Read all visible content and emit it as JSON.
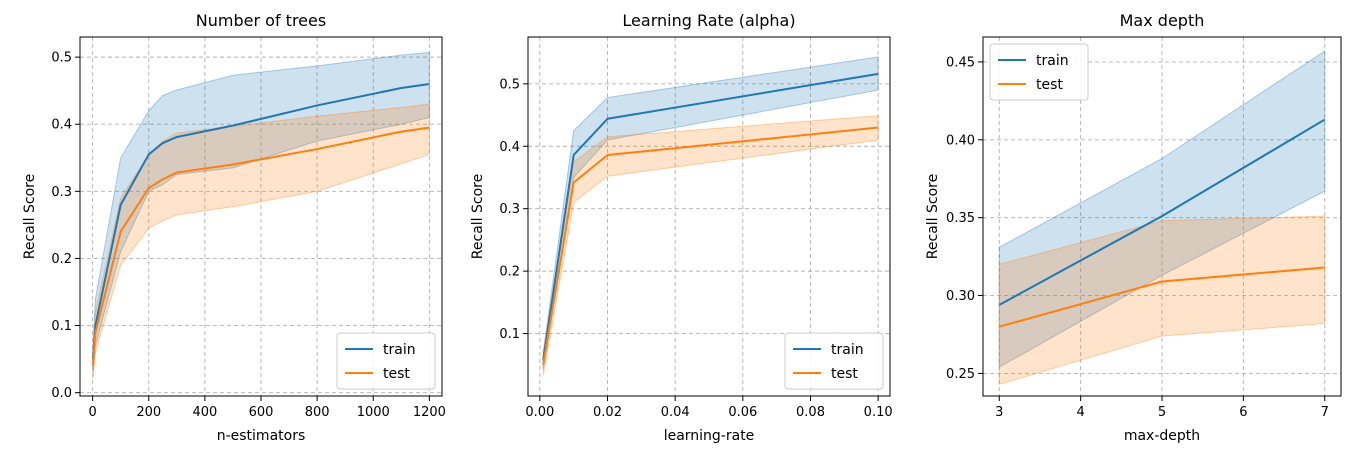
{
  "chart_data": [
    {
      "type": "line",
      "title": "Number of trees",
      "xlabel": "n-estimators",
      "ylabel": "Recall Score",
      "xlim": [
        -45,
        1245
      ],
      "ylim": [
        -0.005,
        0.53
      ],
      "xticks": [
        0,
        200,
        400,
        600,
        800,
        1000,
        1200
      ],
      "xtick_labels": [
        "0",
        "200",
        "400",
        "600",
        "800",
        "1000",
        "1200"
      ],
      "yticks": [
        0.0,
        0.1,
        0.2,
        0.3,
        0.4,
        0.5
      ],
      "ytick_labels": [
        "0.0",
        "0.1",
        "0.2",
        "0.3",
        "0.4",
        "0.5"
      ],
      "grid": true,
      "legend_position": "lower-right",
      "x": [
        1,
        10,
        100,
        200,
        250,
        300,
        500,
        800,
        1100,
        1200
      ],
      "series": [
        {
          "name": "train",
          "color": "#1f77b4",
          "values": [
            0.05,
            0.1,
            0.28,
            0.355,
            0.372,
            0.381,
            0.398,
            0.428,
            0.454,
            0.46
          ],
          "lower": [
            0.03,
            0.07,
            0.21,
            0.3,
            0.31,
            0.325,
            0.335,
            0.375,
            0.4,
            0.41
          ],
          "upper": [
            0.07,
            0.14,
            0.35,
            0.42,
            0.443,
            0.451,
            0.473,
            0.487,
            0.503,
            0.507
          ]
        },
        {
          "name": "test",
          "color": "#ff7f0e",
          "values": [
            0.04,
            0.09,
            0.24,
            0.305,
            0.318,
            0.328,
            0.34,
            0.363,
            0.389,
            0.395
          ],
          "lower": [
            0.02,
            0.06,
            0.19,
            0.245,
            0.256,
            0.265,
            0.277,
            0.3,
            0.341,
            0.355
          ],
          "upper": [
            0.06,
            0.12,
            0.29,
            0.355,
            0.375,
            0.387,
            0.397,
            0.412,
            0.425,
            0.43
          ]
        }
      ]
    },
    {
      "type": "line",
      "title": "Learning Rate (alpha)",
      "xlabel": "learning-rate",
      "ylabel": "Recall Score",
      "xlim": [
        -0.0035,
        0.1035
      ],
      "ylim": [
        0.0,
        0.575
      ],
      "xticks": [
        0.0,
        0.02,
        0.04,
        0.06,
        0.08,
        0.1
      ],
      "xtick_labels": [
        "0.00",
        "0.02",
        "0.04",
        "0.06",
        "0.08",
        "0.10"
      ],
      "yticks": [
        0.1,
        0.2,
        0.3,
        0.4,
        0.5
      ],
      "ytick_labels": [
        "0.1",
        "0.2",
        "0.3",
        "0.4",
        "0.5"
      ],
      "grid": true,
      "legend_position": "lower-right",
      "x": [
        0.001,
        0.01,
        0.02,
        0.1
      ],
      "series": [
        {
          "name": "train",
          "color": "#1f77b4",
          "values": [
            0.057,
            0.386,
            0.444,
            0.516
          ],
          "lower": [
            0.043,
            0.35,
            0.41,
            0.49
          ],
          "upper": [
            0.071,
            0.425,
            0.478,
            0.543
          ]
        },
        {
          "name": "test",
          "color": "#ff7f0e",
          "values": [
            0.05,
            0.342,
            0.386,
            0.43
          ],
          "lower": [
            0.033,
            0.31,
            0.352,
            0.41
          ],
          "upper": [
            0.066,
            0.375,
            0.415,
            0.449
          ]
        }
      ]
    },
    {
      "type": "line",
      "title": "Max depth",
      "xlabel": "max-depth",
      "ylabel": "Recall Score",
      "xlim": [
        2.8,
        7.2
      ],
      "ylim": [
        0.2355,
        0.466
      ],
      "xticks": [
        3,
        4,
        5,
        6,
        7
      ],
      "xtick_labels": [
        "3",
        "4",
        "5",
        "6",
        "7"
      ],
      "yticks": [
        0.25,
        0.3,
        0.35,
        0.4,
        0.45
      ],
      "ytick_labels": [
        "0.25",
        "0.30",
        "0.35",
        "0.40",
        "0.45"
      ],
      "grid": true,
      "legend_position": "upper-left",
      "x": [
        3,
        5,
        7
      ],
      "series": [
        {
          "name": "train",
          "color": "#1f77b4",
          "values": [
            0.294,
            0.351,
            0.413
          ],
          "lower": [
            0.254,
            0.313,
            0.367
          ],
          "upper": [
            0.331,
            0.388,
            0.457
          ]
        },
        {
          "name": "test",
          "color": "#ff7f0e",
          "values": [
            0.28,
            0.309,
            0.318
          ],
          "lower": [
            0.243,
            0.274,
            0.282
          ],
          "upper": [
            0.32,
            0.348,
            0.351
          ]
        }
      ]
    }
  ]
}
